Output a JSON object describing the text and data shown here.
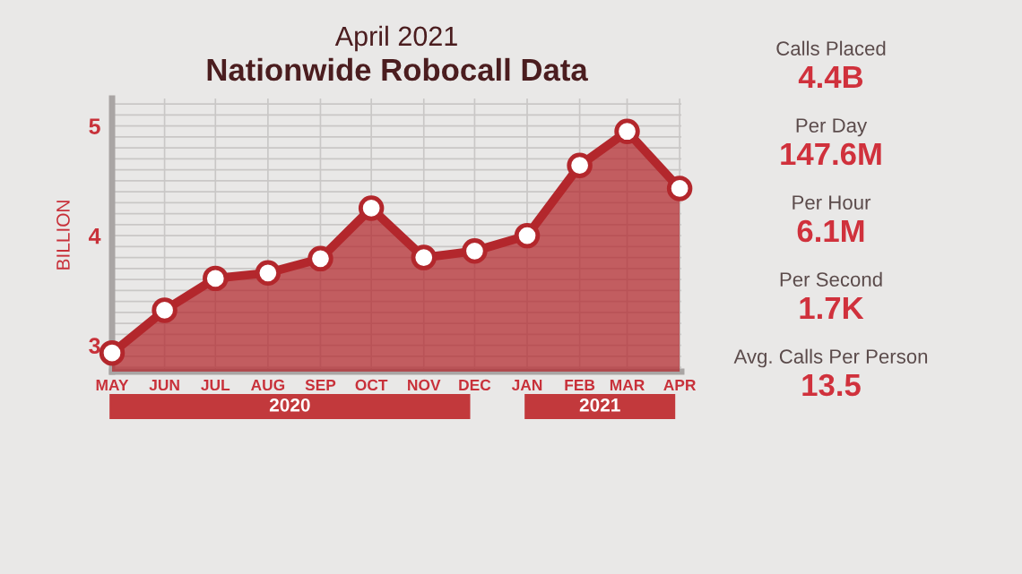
{
  "chart_data": [
    {
      "type": "area",
      "subtitle": "April 2021",
      "title": "Nationwide Robocall Data",
      "ylabel": "BILLION",
      "x": [
        "2020-05",
        "2020-06",
        "2020-07",
        "2020-08",
        "2020-09",
        "2020-10",
        "2020-11",
        "2020-12",
        "2021-01",
        "2021-02",
        "2021-03",
        "2021-04"
      ],
      "series": [
        {
          "color": "#b3272c",
          "values": [
            2.93,
            3.32,
            3.61,
            3.66,
            3.79,
            4.25,
            3.8,
            3.86,
            4.0,
            4.64,
            4.95,
            4.43
          ]
        }
      ],
      "xlim": [
        "2020-05-01",
        "2021-04-02"
      ],
      "xticks": [
        {
          "value": "2020-05",
          "label": "MAY"
        },
        {
          "value": "2020-06",
          "label": "JUN"
        },
        {
          "value": "2020-07",
          "label": "JUL"
        },
        {
          "value": "2020-08",
          "label": "AUG"
        },
        {
          "value": "2020-09",
          "label": "SEP"
        },
        {
          "value": "2020-10",
          "label": "OCT"
        },
        {
          "value": "2020-11",
          "label": "NOV"
        },
        {
          "value": "2020-12",
          "label": "DEC"
        },
        {
          "value": "2021-01",
          "label": "JAN"
        },
        {
          "value": "2021-02",
          "label": "FEB"
        },
        {
          "value": "2021-03",
          "label": "MAR"
        },
        {
          "value": "2021-04",
          "label": "APR"
        }
      ],
      "ylim": [
        2.76,
        5.25
      ],
      "yticks": [
        {
          "value": 2.8,
          "label": null
        },
        {
          "value": 2.9,
          "label": null
        },
        3,
        {
          "value": 3.1,
          "label": null
        },
        {
          "value": 3.2,
          "label": null
        },
        {
          "value": 3.3,
          "label": null
        },
        {
          "value": 3.4,
          "label": null
        },
        {
          "value": 3.5,
          "label": null
        },
        {
          "value": 3.6,
          "label": null
        },
        {
          "value": 3.7,
          "label": null
        },
        {
          "value": 3.8,
          "label": null
        },
        {
          "value": 3.9,
          "label": null
        },
        4,
        {
          "value": 4.1,
          "label": null
        },
        {
          "value": 4.2,
          "label": null
        },
        {
          "value": 4.3,
          "label": null
        },
        {
          "value": 4.4,
          "label": null
        },
        {
          "value": 4.5,
          "label": null
        },
        {
          "value": 4.6,
          "label": null
        },
        {
          "value": 4.7,
          "label": null
        },
        {
          "value": 4.8,
          "label": null
        },
        {
          "value": 4.9,
          "label": null
        },
        5,
        {
          "value": 5.1,
          "label": null
        },
        {
          "value": 5.2,
          "label": null
        }
      ],
      "grid": true,
      "marker": "circle",
      "line_style": "solid",
      "annotations": [
        "2020",
        "2021"
      ]
    },
    {
      "type": "other",
      "annotations": [
        "Calls Placed",
        "4.4B",
        "Per Day",
        "147.6M",
        "Per Hour",
        "6.1M",
        "Per Second",
        "1.7K",
        "Avg. Calls Per Person",
        "13.5"
      ]
    }
  ]
}
